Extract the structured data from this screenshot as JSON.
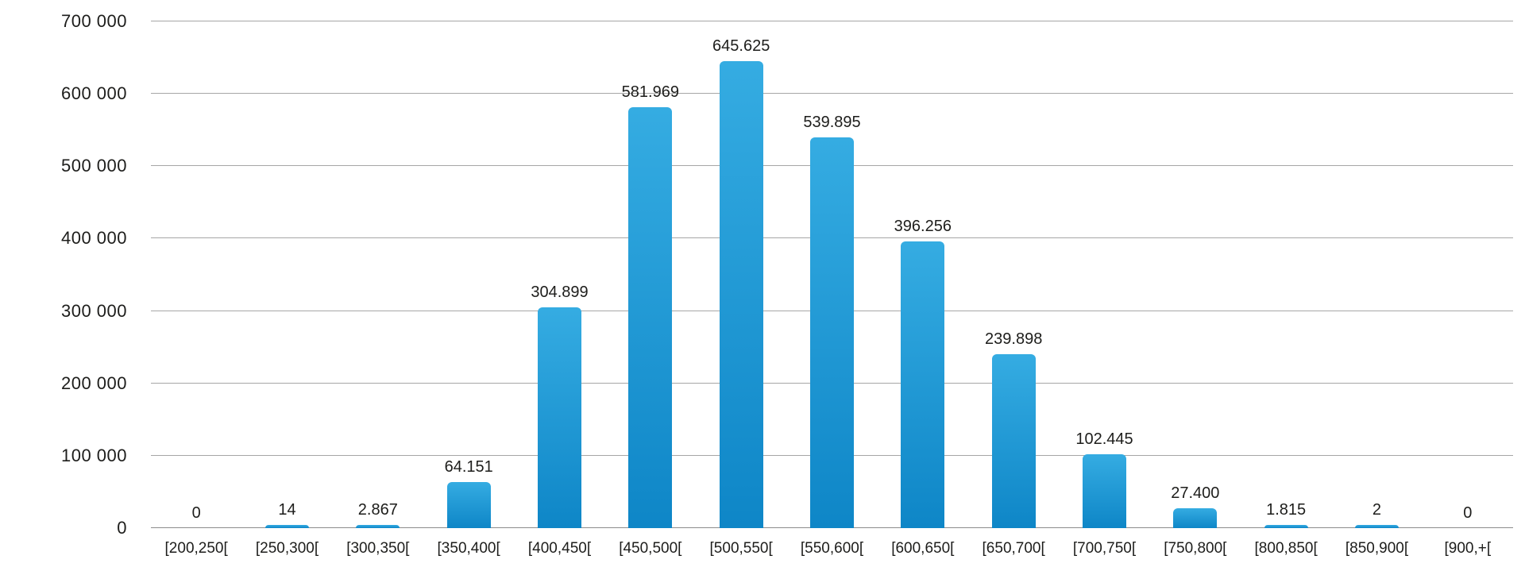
{
  "chart_data": {
    "type": "bar",
    "title": "",
    "xlabel": "",
    "ylabel": "",
    "categories": [
      "[200,250[",
      "[250,300[",
      "[300,350[",
      "[350,400[",
      "[400,450[",
      "[450,500[",
      "[500,550[",
      "[550,600[",
      "[600,650[",
      "[650,700[",
      "[700,750[",
      "[750,800[",
      "[800,850[",
      "[850,900[",
      "[900,+["
    ],
    "values": [
      0,
      14,
      2867,
      64151,
      304899,
      581969,
      645625,
      539895,
      396256,
      239898,
      102445,
      27400,
      1815,
      2,
      0
    ],
    "value_labels": [
      "0",
      "14",
      "2.867",
      "64.151",
      "304.899",
      "581.969",
      "645.625",
      "539.895",
      "396.256",
      "239.898",
      "102.445",
      "27.400",
      "1.815",
      "2",
      "0"
    ],
    "ylim": [
      0,
      700000
    ],
    "ytick_interval": 100000,
    "ytick_labels": [
      "0",
      "100 000",
      "200 000",
      "300 000",
      "400 000",
      "500 000",
      "600 000",
      "700 000"
    ],
    "grid": true,
    "legend": "none",
    "colors": {
      "bar_top": "#35ACE2",
      "bar_bottom": "#0E86C7",
      "gridline": "#a6a6a6",
      "text": "#1d1d1b"
    }
  }
}
